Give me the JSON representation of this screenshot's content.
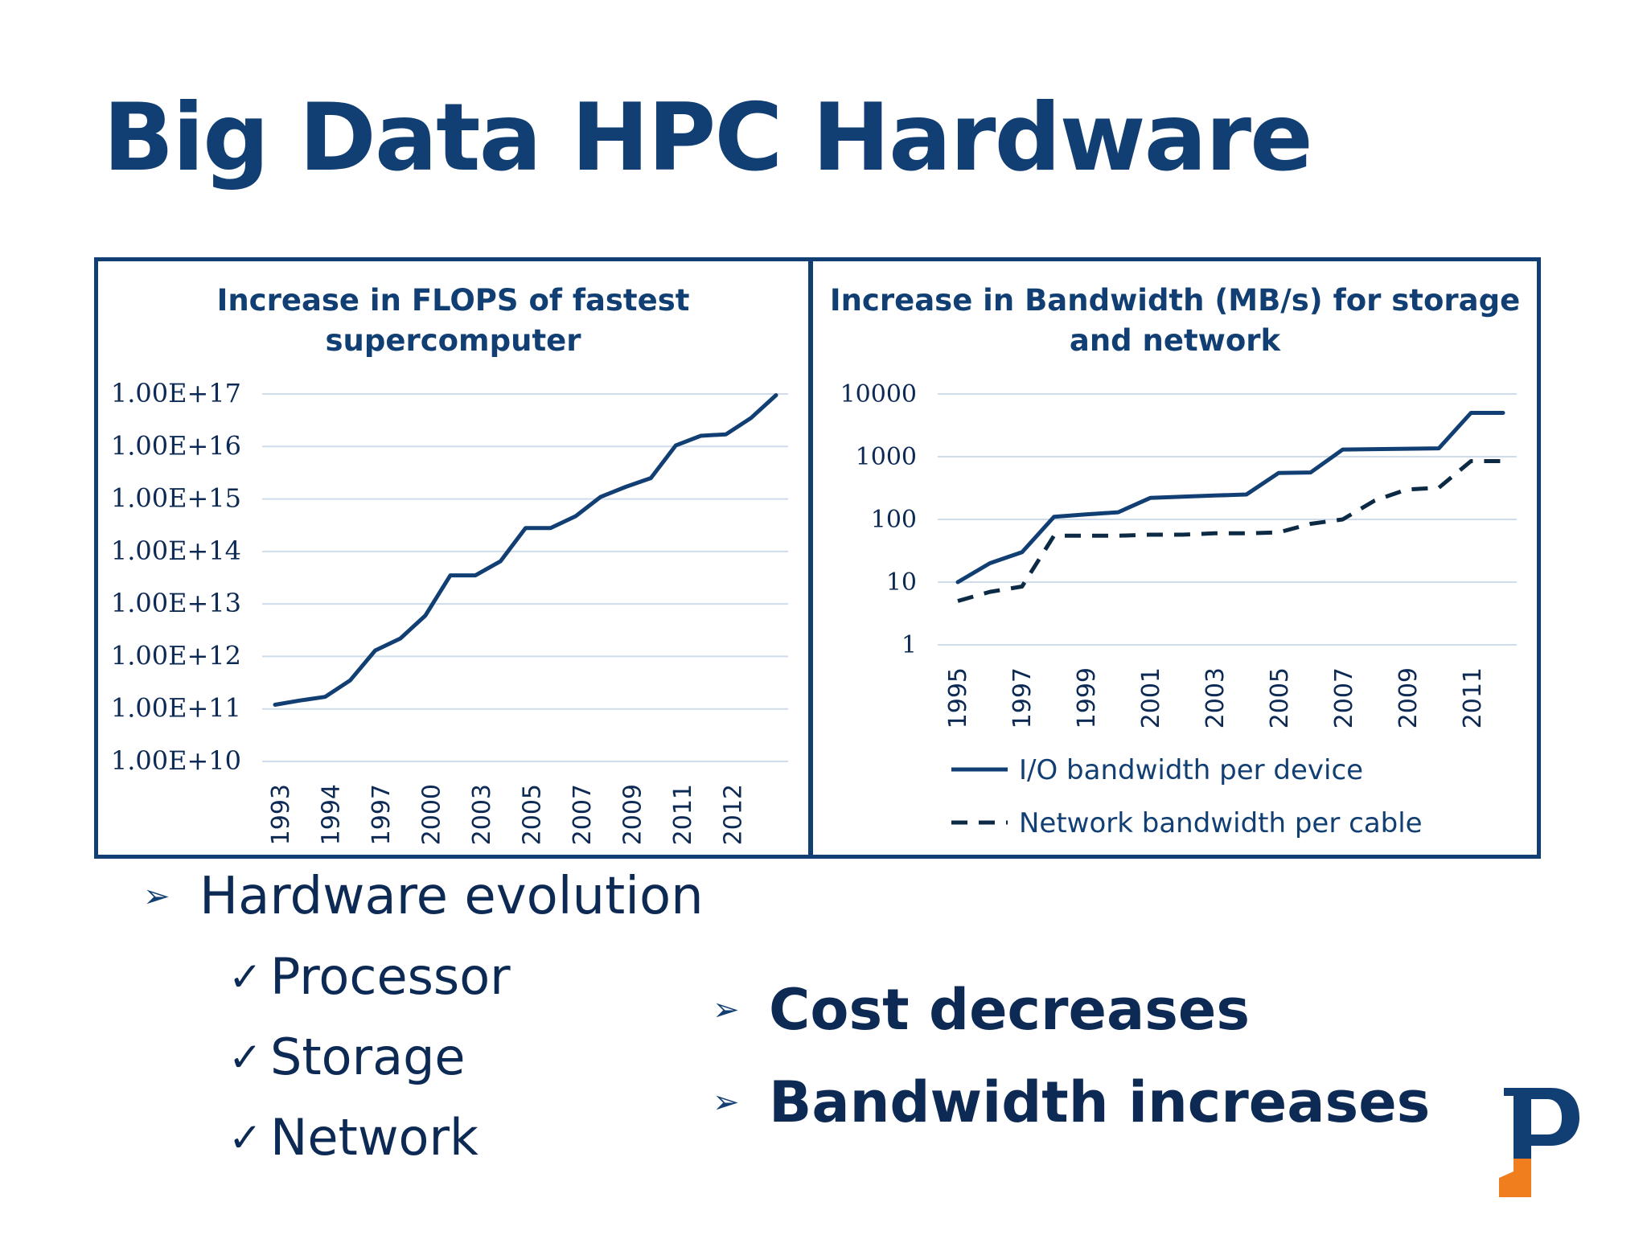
{
  "slide": {
    "title": "Big Data HPC Hardware",
    "bullets": [
      {
        "text": "Hardware evolution",
        "sub": [
          "Processor",
          "Storage",
          "Network"
        ]
      }
    ],
    "highlights": [
      "Cost decreases",
      "Bandwidth increases"
    ],
    "icons": {
      "bullet": "arrowhead-bullet-icon",
      "check": "checkmark-icon",
      "logo": "university-logo"
    },
    "colors": {
      "primary": "#123f73",
      "text": "#0d2a55",
      "grid": "#cfdcec",
      "logo_orange": "#f07d1e"
    }
  },
  "chart_data": [
    {
      "type": "line",
      "title": [
        "Increase in FLOPS of fastest",
        "supercomputer"
      ],
      "scale": "log",
      "ylim": [
        10000000000.0,
        1e+17
      ],
      "y_ticks": [
        "1.00E+10",
        "1.00E+11",
        "1.00E+12",
        "1.00E+13",
        "1.00E+14",
        "1.00E+15",
        "1.00E+16",
        "1.00E+17"
      ],
      "x_tick_labels": [
        "1993",
        "1994",
        "1997",
        "2000",
        "2003",
        "2005",
        "2007",
        "2009",
        "2011",
        "2012"
      ],
      "grid": true,
      "legend": "none",
      "series": [
        {
          "values": [
            120000000000.0,
            145000000000.0,
            170000000000.0,
            350000000000.0,
            1300000000000.0,
            2200000000000.0,
            6000000000000.0,
            35000000000000.0,
            35000000000000.0,
            65000000000000.0,
            280000000000000.0,
            280000000000000.0,
            470000000000000.0,
            1100000000000000.0,
            1700000000000000.0,
            2500000000000000.0,
            1.05e+16,
            1.6e+16,
            1.7e+16,
            3.5e+16,
            9.5e+16
          ]
        }
      ]
    },
    {
      "type": "line",
      "title": [
        "Increase in Bandwidth (MB/s) for storage",
        "and network"
      ],
      "scale": "log",
      "ylim": [
        1,
        10000
      ],
      "y_ticks": [
        "1",
        "10",
        "100",
        "1000",
        "10000"
      ],
      "x_tick_labels": [
        "1995",
        "1997",
        "1999",
        "2001",
        "2003",
        "2005",
        "2007",
        "2009",
        "2011"
      ],
      "grid": true,
      "legend": "bottom",
      "series": [
        {
          "name": "I/O bandwidth per device",
          "style": "solid",
          "values": [
            10,
            20,
            30,
            110,
            120,
            130,
            220,
            230,
            240,
            250,
            550,
            560,
            1300,
            1320,
            1340,
            1360,
            5000,
            5000
          ]
        },
        {
          "name": "Network bandwidth per cable",
          "style": "dashed",
          "values": [
            5,
            7,
            8.5,
            55,
            55,
            55,
            57,
            57,
            60,
            60,
            62,
            85,
            100,
            200,
            300,
            320,
            850,
            850
          ]
        }
      ]
    }
  ]
}
